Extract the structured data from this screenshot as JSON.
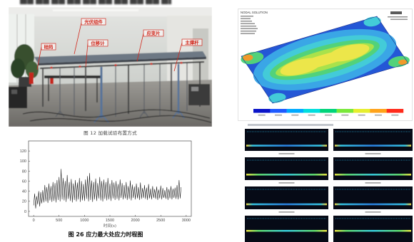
{
  "photo": {
    "labels": {
      "pv_module": "光伏组件",
      "strain_gauge": "应变片",
      "displacement_meter": "位移计",
      "main_strut": "主撑杆",
      "weights": "砝码"
    },
    "caption": "图 12 加载试验布置方式"
  },
  "fea": {
    "header": "NODAL SOLUTION",
    "legend_colors": [
      "#0a14c8",
      "#1e5aff",
      "#00aaff",
      "#00dede",
      "#00d47a",
      "#7ae83a",
      "#e6ee2e",
      "#ffa31a",
      "#ff2a1a"
    ]
  },
  "stress_figure": {
    "caption": "图 26 应力最大处应力时程图"
  },
  "colors": {
    "series": "#111111",
    "annotation_red": "#d22a1e"
  },
  "chart_data": {
    "type": "line",
    "xlabel": "时间(s)",
    "xlim": [
      -100,
      3100
    ],
    "ylim": [
      -10,
      140
    ],
    "xticks": [
      0,
      500,
      1000,
      1500,
      2000,
      2500,
      3000
    ],
    "yticks": [
      0,
      20,
      40,
      60,
      80,
      100,
      120
    ],
    "grid": false,
    "x": [
      0,
      20,
      40,
      60,
      80,
      100,
      120,
      140,
      160,
      180,
      200,
      220,
      240,
      260,
      280,
      300,
      320,
      340,
      360,
      380,
      400,
      420,
      440,
      460,
      480,
      500,
      520,
      540,
      560,
      580,
      600,
      620,
      640,
      660,
      680,
      700,
      720,
      740,
      760,
      780,
      800,
      820,
      840,
      860,
      880,
      900,
      920,
      940,
      960,
      980,
      1000,
      1020,
      1040,
      1060,
      1080,
      1100,
      1120,
      1140,
      1160,
      1180,
      1200,
      1220,
      1240,
      1260,
      1280,
      1300,
      1320,
      1340,
      1360,
      1380,
      1400,
      1420,
      1440,
      1460,
      1480,
      1500,
      1520,
      1540,
      1560,
      1580,
      1600,
      1620,
      1640,
      1660,
      1680,
      1700,
      1720,
      1740,
      1760,
      1780,
      1800,
      1820,
      1840,
      1860,
      1880,
      1900,
      1920,
      1940,
      1960,
      1980,
      2000,
      2020,
      2040,
      2060,
      2080,
      2100,
      2120,
      2140,
      2160,
      2180,
      2200,
      2220,
      2240,
      2260,
      2280,
      2300,
      2320,
      2340,
      2360,
      2380,
      2400,
      2420,
      2440,
      2460,
      2480,
      2500,
      2520,
      2540,
      2560,
      2580,
      2600,
      2620,
      2640,
      2660,
      2680,
      2700,
      2720,
      2740,
      2760,
      2780,
      2800,
      2820,
      2840,
      2860,
      2880,
      2900
    ],
    "series": [
      {
        "values": [
          12,
          35,
          6,
          30,
          14,
          40,
          10,
          38,
          16,
          42,
          18,
          52,
          20,
          48,
          17,
          55,
          22,
          50,
          19,
          58,
          21,
          56,
          18,
          62,
          23,
          68,
          20,
          84,
          24,
          66,
          22,
          60,
          19,
          72,
          25,
          58,
          21,
          64,
          18,
          55,
          23,
          62,
          20,
          57,
          24,
          66,
          19,
          60,
          22,
          54,
          21,
          63,
          25,
          70,
          20,
          76,
          23,
          61,
          19,
          58,
          24,
          65,
          21,
          56,
          26,
          68,
          22,
          60,
          20,
          63,
          25,
          58,
          22,
          66,
          24,
          55,
          21,
          62,
          26,
          57,
          23,
          60,
          25,
          54,
          22,
          63,
          27,
          56,
          24,
          52,
          26,
          58,
          23,
          50,
          25,
          61,
          22,
          53,
          27,
          49,
          24,
          55,
          26,
          48,
          23,
          57,
          25,
          46,
          27,
          52,
          25,
          47,
          23,
          54,
          26,
          45,
          24,
          50,
          27,
          44,
          25,
          49,
          23,
          43,
          26,
          51,
          24,
          46,
          27,
          42,
          25,
          48,
          23,
          44,
          26,
          50,
          24,
          45,
          27,
          47,
          25,
          52,
          24,
          62,
          26,
          48
        ]
      }
    ]
  }
}
